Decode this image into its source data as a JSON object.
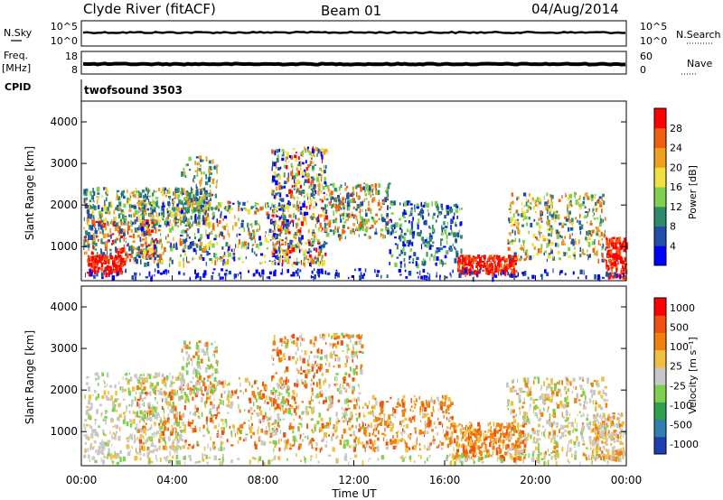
{
  "header": {
    "site": "Clyde River (fitACF)",
    "beam": "Beam 01",
    "date": "04/Aug/2014"
  },
  "status_panels": {
    "nsky_label": "N.Sky",
    "nsky_ticks": [
      "10^5",
      "10^0"
    ],
    "nsearch_label": "N.Search",
    "nsearch_ticks": [
      "10^5",
      "10^0"
    ],
    "freq_label": "Freq.",
    "freq_unit": "[MHz]",
    "freq_ticks": [
      "18",
      "8"
    ],
    "nave_label": "Nave",
    "nave_ticks": [
      "60",
      "0"
    ],
    "cpid_label": "CPID",
    "cpid_value": "twofsound 3503"
  },
  "chart_data": [
    {
      "type": "heatmap",
      "title": "",
      "ylabel": "Slant Range [km]",
      "ylim": [
        180,
        4500
      ],
      "yticks": [
        "1000",
        "2000",
        "3000",
        "4000"
      ],
      "colorbar_label": "Power [dB]",
      "colorbar_ticks": [
        "4",
        "8",
        "12",
        "16",
        "20",
        "24",
        "28"
      ],
      "colors": [
        "#0000ff",
        "#1f4fa8",
        "#2e8b6e",
        "#7fd050",
        "#f0e040",
        "#f0a020",
        "#f06010",
        "#ff0000"
      ]
    },
    {
      "type": "heatmap",
      "title": "",
      "xlabel": "Time UT",
      "ylabel": "Slant Range [km]",
      "ylim": [
        180,
        4500
      ],
      "xticks": [
        "00:00",
        "04:00",
        "08:00",
        "12:00",
        "16:00",
        "20:00",
        "00:00"
      ],
      "yticks": [
        "1000",
        "2000",
        "3000",
        "4000"
      ],
      "colorbar_label": "Velocity [m s⁻¹]",
      "colorbar_ticks": [
        "1000",
        "500",
        "100",
        "25",
        "-25",
        "-100",
        "-500",
        "-1000"
      ],
      "colors": [
        "#1f3fb0",
        "#2f7fb0",
        "#2fa050",
        "#7fd050",
        "#c8c8c8",
        "#f0c040",
        "#f08010",
        "#f05010",
        "#ff0000"
      ]
    }
  ]
}
